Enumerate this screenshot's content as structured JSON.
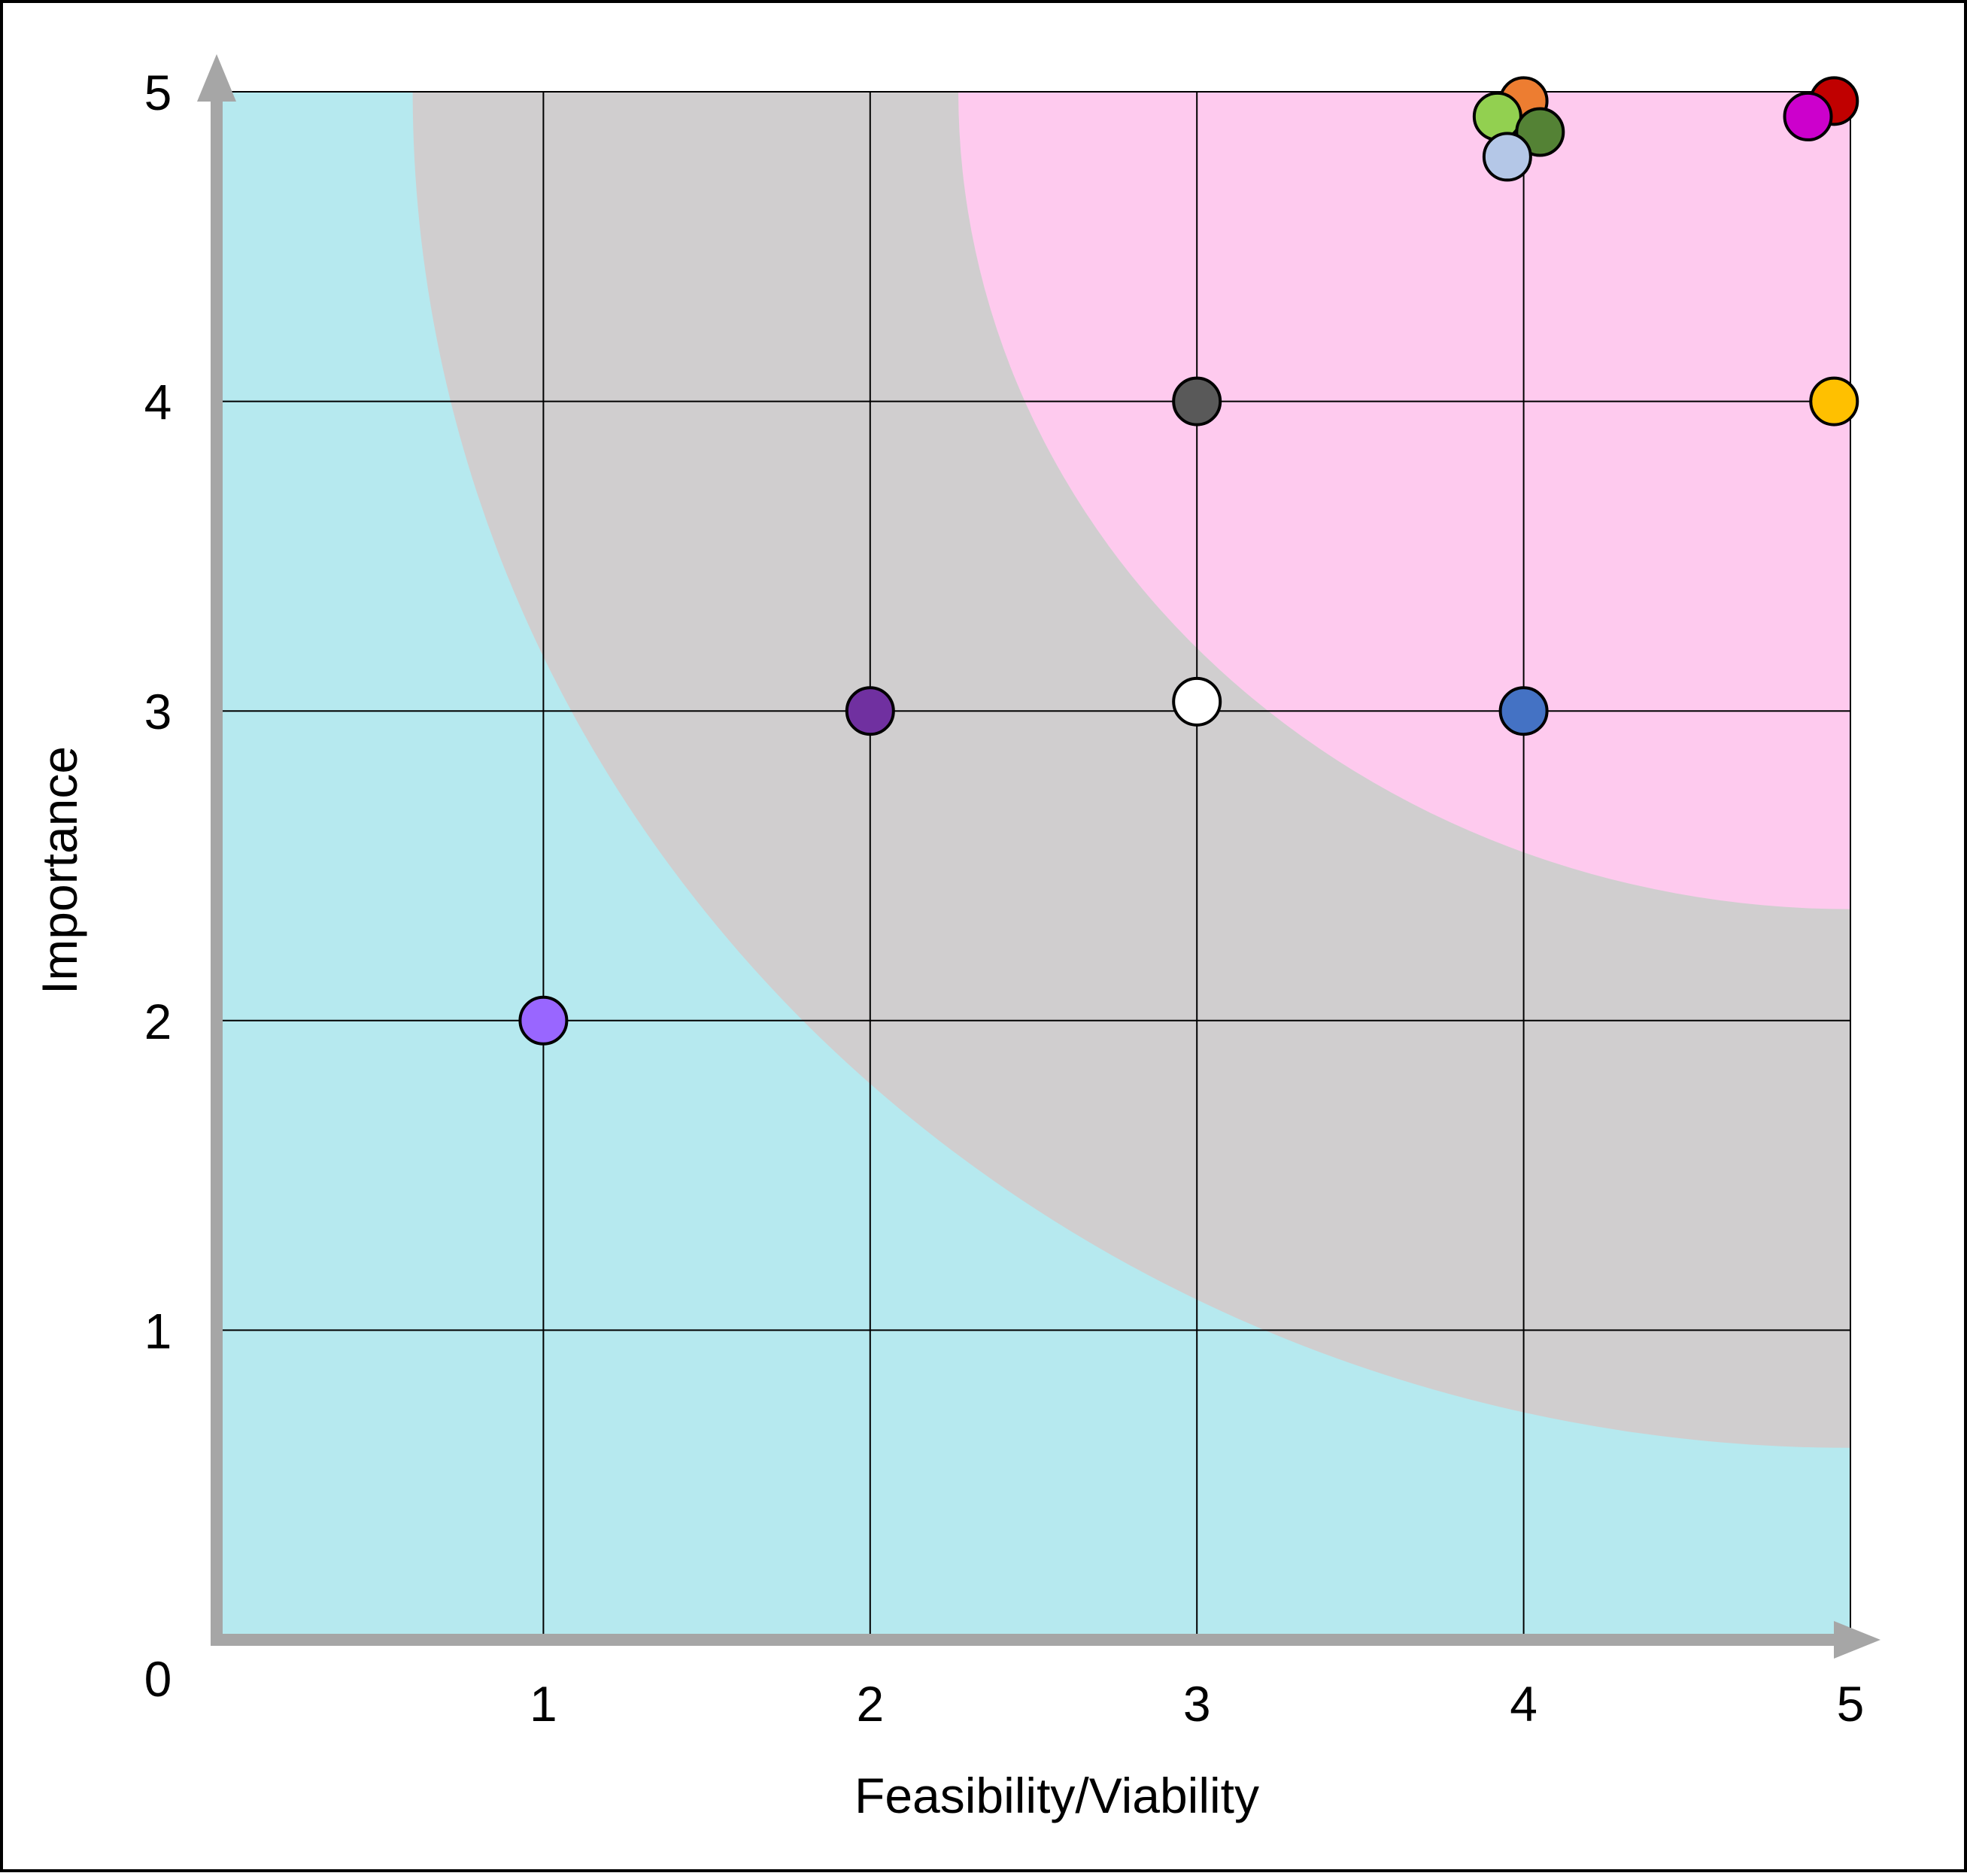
{
  "chart_data": {
    "type": "scatter",
    "xlabel": "Feasibility/Viability",
    "ylabel": "Importance",
    "xlim": [
      0,
      5
    ],
    "ylim": [
      0,
      5
    ],
    "origin_label": "0",
    "x_ticks": [
      "1",
      "2",
      "3",
      "4",
      "5"
    ],
    "y_ticks": [
      "1",
      "2",
      "3",
      "4",
      "5"
    ],
    "grid": true,
    "colors": {
      "zone_low": "#b6e9ef",
      "zone_mid": "#d0cecf",
      "zone_high": "#fecaee",
      "axis": "#a6a6a6",
      "grid": "#000000"
    },
    "zones": [
      {
        "fill": "#b6e9ef",
        "r_x": 5,
        "r_y": 5
      },
      {
        "fill": "#d0cecf",
        "r_x": 4.4,
        "r_y": 4.38
      },
      {
        "fill": "#fecaee",
        "r_x": 2.73,
        "r_y": 2.64
      }
    ],
    "points": [
      {
        "x": 1,
        "y": 2,
        "color": "#9966ff"
      },
      {
        "x": 2,
        "y": 3,
        "color": "#7030a0"
      },
      {
        "x": 3,
        "y": 3.03,
        "color": "#ffffff"
      },
      {
        "x": 3,
        "y": 4,
        "color": "#595959"
      },
      {
        "x": 4,
        "y": 3,
        "color": "#4472c4"
      },
      {
        "x": 4,
        "y": 4.97,
        "color": "#ed7d31"
      },
      {
        "x": 3.92,
        "y": 4.92,
        "color": "#92d050"
      },
      {
        "x": 4.05,
        "y": 4.87,
        "color": "#548235"
      },
      {
        "x": 3.95,
        "y": 4.79,
        "color": "#b4c7e7"
      },
      {
        "x": 4.95,
        "y": 4,
        "color": "#ffc000"
      },
      {
        "x": 4.95,
        "y": 4.97,
        "color": "#c00000"
      },
      {
        "x": 4.87,
        "y": 4.92,
        "color": "#cc00cc"
      }
    ]
  }
}
